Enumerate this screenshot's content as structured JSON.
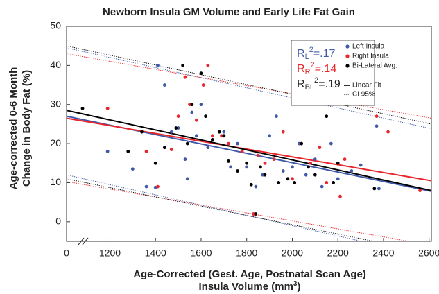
{
  "chart_data": {
    "type": "scatter",
    "title": "Newborn Insula GM Volume and Early Life Fat Gain",
    "x_label": [
      "Age-Corrected (Gest. Age, Postnatal Scan Age)",
      {
        "text": "Insula Volume (mm",
        "sup": "3",
        "end": ")"
      }
    ],
    "y_label": [
      "Age-corrected 0-6 Month",
      "Change in Body Fat (%)"
    ],
    "xlim": [
      1010,
      2610
    ],
    "x_axis_break": true,
    "xticks": [
      0,
      1200,
      1400,
      1600,
      1800,
      2000,
      2200,
      2400,
      2600
    ],
    "ylim": [
      -5,
      50
    ],
    "yticks": [
      0,
      10,
      20,
      30,
      40,
      50
    ],
    "annotations": [
      {
        "base": "R",
        "sub": "L",
        "sup": "2",
        "rest": "=.17",
        "color": "#3f5aa8"
      },
      {
        "base": "R",
        "sub": "R",
        "sup": "2",
        "rest": "=.14",
        "color": "#e8262b"
      },
      {
        "base": "R",
        "sub": "BL",
        "sup": "2",
        "rest": "=.19",
        "color": "#222222"
      }
    ],
    "series": [
      {
        "name": "Left Insula",
        "color": "#3f5aa8",
        "x": [
          1190,
          1300,
          1360,
          1400,
          1410,
          1440,
          1470,
          1500,
          1530,
          1540,
          1560,
          1580,
          1600,
          1630,
          1650,
          1700,
          1730,
          1760,
          1800,
          1830,
          1840,
          1870,
          1900,
          1930,
          1960,
          2000,
          2030,
          2060,
          2100,
          2130,
          2170,
          2200,
          2260,
          2300,
          2370,
          2380
        ],
        "values": [
          18,
          13.5,
          9,
          8.8,
          40,
          35,
          23,
          24,
          16,
          11,
          28,
          22,
          30,
          19,
          21,
          23,
          14,
          20,
          14,
          2,
          9,
          12,
          22,
          27,
          13,
          14,
          20,
          12,
          16,
          9,
          20,
          11,
          13,
          14.5,
          24.5,
          8.5
        ]
      },
      {
        "name": "Right Insula",
        "color": "#e8262b",
        "x": [
          1190,
          1360,
          1410,
          1470,
          1500,
          1530,
          1550,
          1580,
          1610,
          1630,
          1650,
          1690,
          1720,
          1780,
          1830,
          1850,
          1880,
          1920,
          1960,
          2000,
          2040,
          2080,
          2120,
          2150,
          2210,
          2230,
          2370,
          2420,
          2560
        ],
        "values": [
          29,
          18,
          9,
          18.5,
          27,
          37,
          30,
          26,
          35,
          40,
          22,
          22,
          20,
          18,
          2,
          17,
          15,
          16,
          23,
          11,
          20,
          15,
          19,
          10,
          6.5,
          16,
          27,
          23,
          8
        ]
      },
      {
        "name": "Bi-Lateral Avg.",
        "color": "#000000",
        "x": [
          1080,
          1280,
          1340,
          1400,
          1440,
          1490,
          1520,
          1540,
          1560,
          1600,
          1620,
          1650,
          1680,
          1700,
          1720,
          1760,
          1800,
          1820,
          1840,
          1860,
          1880,
          1940,
          1980,
          2010,
          2040,
          2070,
          2100,
          2150,
          2180,
          2200,
          2360
        ],
        "values": [
          29,
          18,
          23,
          15,
          19,
          24,
          40,
          20,
          30,
          38,
          27,
          21,
          23,
          22,
          15.5,
          13,
          15,
          9.5,
          2,
          14,
          12,
          10,
          11,
          10,
          20,
          14,
          12,
          27,
          10,
          15,
          8.5
        ]
      }
    ],
    "fit_legend": [
      "Linear Fit",
      "CI 95%"
    ],
    "fits": [
      {
        "color": "#3f5aa8",
        "x": [
          1010,
          2610
        ],
        "fit": [
          27,
          7.8
        ],
        "upper": [
          44.5,
          23.8
        ],
        "lower": [
          12,
          -9
        ]
      },
      {
        "color": "#e8262b",
        "x": [
          1010,
          2610
        ],
        "fit": [
          26.5,
          10.5
        ],
        "upper": [
          43,
          26.5
        ],
        "lower": [
          10.3,
          -6
        ]
      },
      {
        "color": "#000000",
        "x": [
          1010,
          2610
        ],
        "fit": [
          28.5,
          8
        ],
        "upper": [
          45,
          25
        ],
        "lower": [
          11,
          -8
        ]
      }
    ]
  }
}
